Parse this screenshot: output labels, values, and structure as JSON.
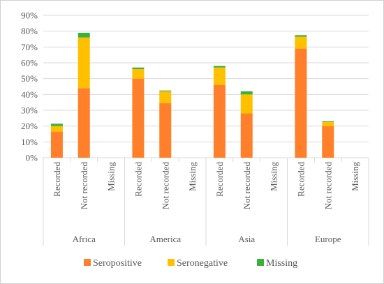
{
  "chart_data": {
    "type": "bar",
    "stacked": true,
    "groups": [
      "Africa",
      "America",
      "Asia",
      "Europe"
    ],
    "categories": [
      "Recorded",
      "Not recorded",
      "Missing"
    ],
    "y_tick_labels": [
      "0%",
      "10%",
      "20%",
      "30%",
      "40%",
      "50%",
      "60%",
      "70%",
      "80%",
      "90%"
    ],
    "ylim": [
      0,
      90
    ],
    "grid": true,
    "legend_position": "bottom",
    "series": [
      {
        "name": "Seropositive",
        "color": "#ff7f2a",
        "values": [
          [
            16.5,
            44,
            0
          ],
          [
            50,
            34.5,
            0
          ],
          [
            46,
            28,
            0
          ],
          [
            69,
            20,
            0
          ]
        ]
      },
      {
        "name": "Seronegative",
        "color": "#ffc000",
        "values": [
          [
            3.5,
            32,
            0
          ],
          [
            6,
            7.5,
            0
          ],
          [
            11,
            12,
            0
          ],
          [
            7.5,
            2.5,
            0
          ]
        ]
      },
      {
        "name": "Missing",
        "color": "#3cb03c",
        "values": [
          [
            1.5,
            3,
            0
          ],
          [
            1,
            0.5,
            0
          ],
          [
            1,
            2,
            0
          ],
          [
            1,
            0.5,
            0
          ]
        ]
      }
    ]
  }
}
